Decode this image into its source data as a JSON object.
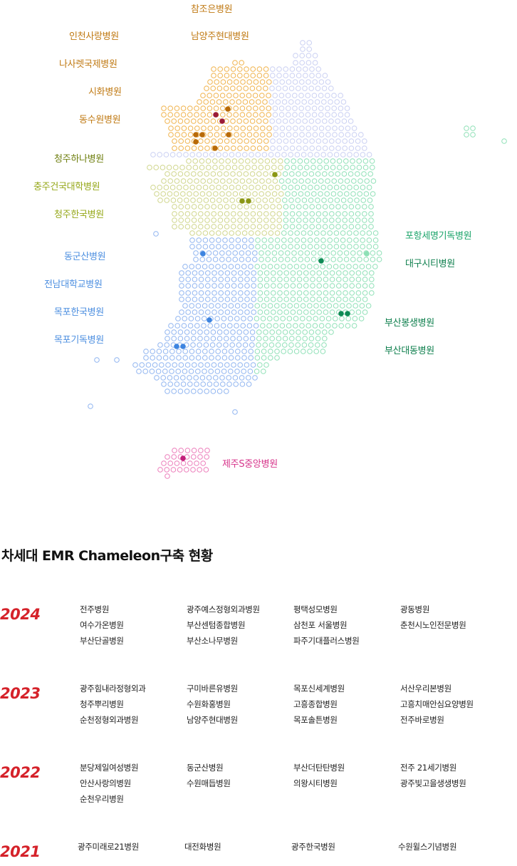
{
  "map_labels": {
    "left": [
      {
        "text": "참조은병원",
        "color": "#c07a14"
      },
      {
        "text": "인천사랑병원",
        "color": "#c07a14"
      },
      {
        "text": "남양주현대병원",
        "color": "#c07a14"
      },
      {
        "text": "나사렛국제병원",
        "color": "#c07a14"
      },
      {
        "text": "시화병원",
        "color": "#c07a14"
      },
      {
        "text": "동수원병원",
        "color": "#c07a14"
      },
      {
        "text": "청주하나병원",
        "color": "#6f7f10"
      },
      {
        "text": "충주건국대학병원",
        "color": "#96a81a"
      },
      {
        "text": "청주한국병원",
        "color": "#96a81a"
      },
      {
        "text": "동군산병원",
        "color": "#4d8fe0"
      },
      {
        "text": "전남대학교병원",
        "color": "#4d8fe0"
      },
      {
        "text": "목포한국병원",
        "color": "#4d8fe0"
      },
      {
        "text": "목포기독병원",
        "color": "#4d8fe0"
      }
    ],
    "right": [
      {
        "text": "포항세명기독병원",
        "color": "#1ba46a"
      },
      {
        "text": "대구시티병원",
        "color": "#0e7f4d"
      },
      {
        "text": "부산봉생병원",
        "color": "#0e7f4d"
      },
      {
        "text": "부산대동병원",
        "color": "#0e7f4d"
      },
      {
        "text": "제주S중앙병원",
        "color": "#d6338a"
      }
    ]
  },
  "section": {
    "title": "차세대 EMR Chameleon구축 현황"
  },
  "years": [
    {
      "year": "2024",
      "columns": [
        [
          "전주병원",
          "여수가온병원",
          "부산단골병원"
        ],
        [
          "광주예스정형외과병원",
          "부산센텀종합병원",
          "부산소나무병원"
        ],
        [
          "평택성모병원",
          "삼천포 서울병원",
          "파주기대플러스병원"
        ],
        [
          "광동병원",
          "춘천시노인전문병원"
        ]
      ]
    },
    {
      "year": "2023",
      "columns": [
        [
          "광주힘내라정형외과",
          "청주뿌리병원",
          "순천정형외과병원"
        ],
        [
          "구미바른유병원",
          "수원화홍병원",
          "남양주현대병원"
        ],
        [
          "목포신세계병원",
          "고흥종합병원",
          "목포솔튼병원"
        ],
        [
          "서산우리본병원",
          "고흥치매안심요양병원",
          "전주바로병원"
        ]
      ]
    },
    {
      "year": "2022",
      "columns": [
        [
          "분당제일여성병원",
          "안산사랑의병원",
          "순천우리병원"
        ],
        [
          "동군산병원",
          "수원매듭병원"
        ],
        [
          "부산더탄탄병원",
          "의왕시티병원"
        ],
        [
          "전주 21세기병원",
          "광주빛고을생생병원"
        ]
      ]
    },
    {
      "year": "2021",
      "columns": [
        [
          "광주미래로21병원"
        ],
        [
          "대전화병원"
        ],
        [
          "광주한국병원"
        ],
        [
          "수원윌스기념병원"
        ]
      ]
    }
  ],
  "colors": {
    "capital": "#f0b24a",
    "capital_dark": "#b86a08",
    "capital_point": "#9a1b38",
    "gangwon": "#c9cff2",
    "chungcheong": "#cfd58a",
    "chungcheong_dark": "#8a9614",
    "jeolla": "#8fb4f0",
    "jeolla_dark": "#3d84e0",
    "gyeongsang": "#8ee0b6",
    "gyeongsang_dark": "#0e8a55",
    "jeju": "#ec7cba",
    "jeju_dark": "#c21e7a",
    "year_red": "#d5222a"
  }
}
